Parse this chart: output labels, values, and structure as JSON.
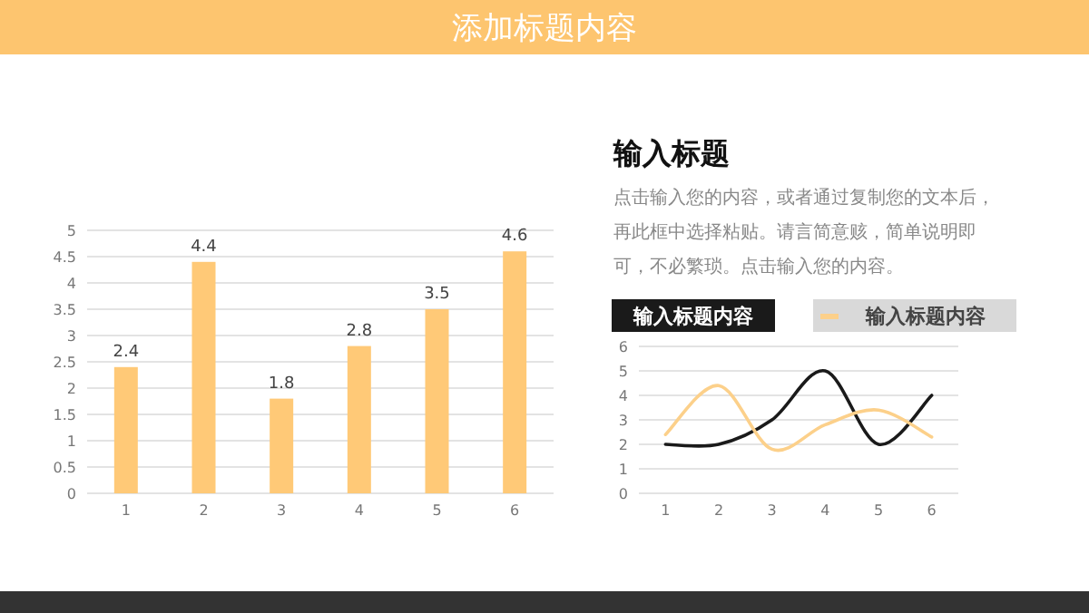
{
  "chart_data": [
    {
      "type": "bar",
      "title": "添加标题内容",
      "categories": [
        "1",
        "2",
        "3",
        "4",
        "5",
        "6"
      ],
      "values": [
        2.4,
        4.4,
        1.8,
        2.8,
        3.5,
        4.6
      ],
      "color": "#ffc977",
      "ylim": [
        0,
        5
      ],
      "yticks": [
        0,
        0.5,
        1,
        1.5,
        2,
        2.5,
        3,
        3.5,
        4,
        4.5,
        5
      ],
      "grid": "y",
      "data_labels": true
    },
    {
      "type": "other",
      "title": "输入标题",
      "annotations": [
        "点击输入您的内容，或者通过复制您的文本后，再此框中选择粘贴。请言简意赅，简单说明即可，不必繁琐。点击输入您的内容。"
      ]
    },
    {
      "type": "line",
      "categories": [
        "1",
        "2",
        "3",
        "4",
        "5",
        "6"
      ],
      "ylim": [
        0,
        6
      ],
      "yticks": [
        0,
        1,
        2,
        3,
        4,
        5,
        6
      ],
      "grid": "y",
      "legend": "top",
      "series": [
        {
          "name": "输入标题内容",
          "color": "#1a1a1a",
          "values": [
            2,
            2,
            3,
            5,
            2,
            4
          ]
        },
        {
          "name": "输入标题内容",
          "color": "#fcd08a",
          "values": [
            2.4,
            4.4,
            1.8,
            2.8,
            3.4,
            2.3
          ]
        }
      ]
    }
  ]
}
